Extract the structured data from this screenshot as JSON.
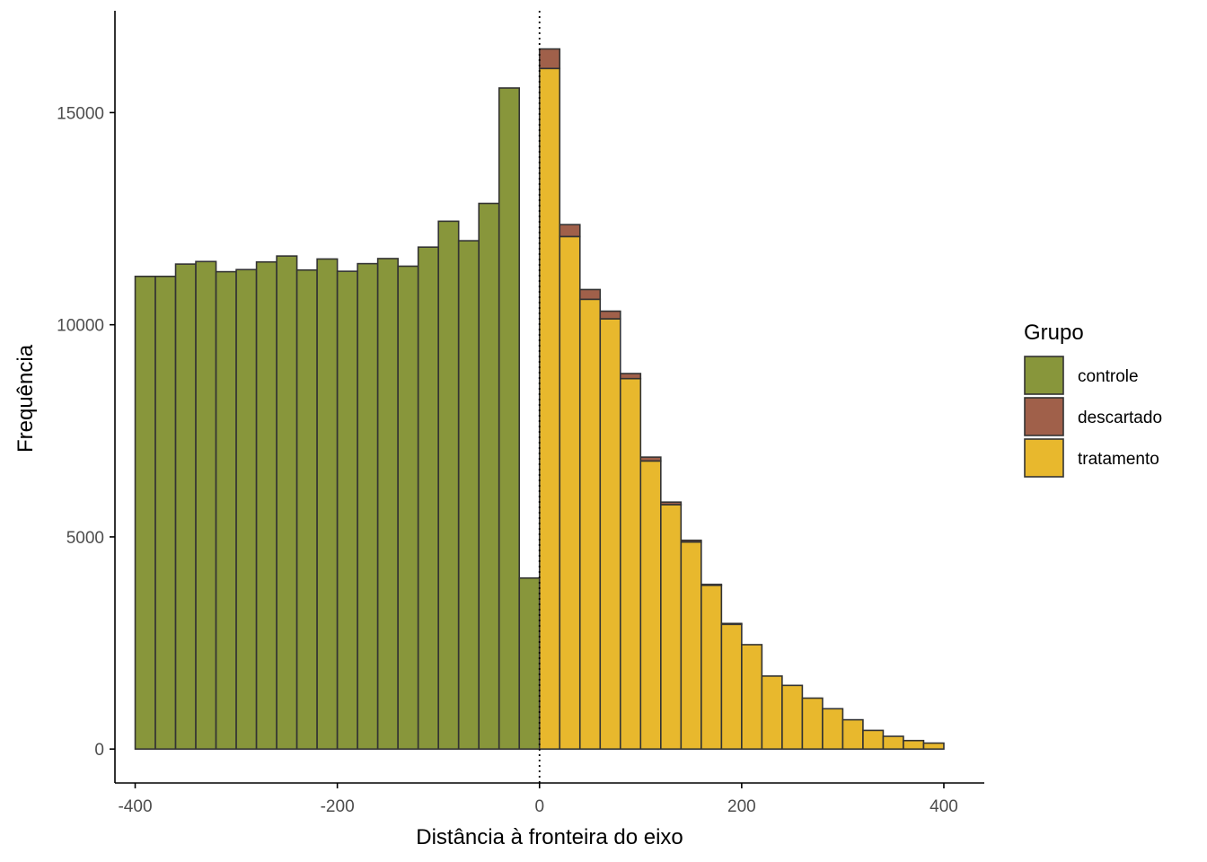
{
  "chart_data": {
    "type": "bar",
    "subtype": "stacked-histogram",
    "xlabel": "Distância à fronteira do eixo",
    "ylabel": "Frequência",
    "xlim": [
      -420,
      440
    ],
    "ylim": [
      -800,
      17400
    ],
    "x_ticks": [
      -400,
      -200,
      0,
      200,
      400
    ],
    "x_tick_labels": [
      "-400",
      "-200",
      "0",
      "200",
      "400"
    ],
    "y_ticks": [
      0,
      5000,
      10000,
      15000
    ],
    "y_tick_labels": [
      "0",
      "5000",
      "10000",
      "15000"
    ],
    "grid": false,
    "cutoff_line": {
      "x": 0,
      "style": "dotted"
    },
    "bin_width": 20,
    "bin_starts": [
      -400,
      -380,
      -360,
      -340,
      -320,
      -300,
      -280,
      -260,
      -240,
      -220,
      -200,
      -180,
      -160,
      -140,
      -120,
      -100,
      -80,
      -60,
      -40,
      -20,
      0,
      20,
      40,
      60,
      80,
      100,
      120,
      140,
      160,
      180,
      200,
      220,
      240,
      260,
      280,
      300,
      320,
      340,
      360,
      380
    ],
    "legend": {
      "title": "Grupo",
      "position": "right"
    },
    "series": [
      {
        "name": "controle",
        "color": "#88963B",
        "values": [
          11140,
          11140,
          11430,
          11490,
          11250,
          11300,
          11480,
          11620,
          11290,
          11550,
          11260,
          11440,
          11560,
          11380,
          11830,
          12440,
          11980,
          12860,
          15580,
          4030,
          0,
          0,
          0,
          0,
          0,
          0,
          0,
          0,
          0,
          0,
          0,
          0,
          0,
          0,
          0,
          0,
          0,
          0,
          0,
          0
        ]
      },
      {
        "name": "tratamento",
        "color": "#E8B82D",
        "values": [
          0,
          0,
          0,
          0,
          0,
          0,
          0,
          0,
          0,
          0,
          0,
          0,
          0,
          0,
          0,
          0,
          0,
          0,
          0,
          0,
          16040,
          12080,
          10600,
          10140,
          8730,
          6790,
          5760,
          4880,
          3860,
          2940,
          2460,
          1720,
          1500,
          1200,
          950,
          690,
          440,
          300,
          200,
          140
        ]
      },
      {
        "name": "descartado",
        "color": "#A0604A",
        "values": [
          0,
          0,
          0,
          0,
          0,
          0,
          0,
          0,
          0,
          0,
          0,
          0,
          0,
          0,
          0,
          0,
          0,
          0,
          0,
          0,
          460,
          280,
          230,
          180,
          120,
          90,
          60,
          40,
          20,
          20,
          0,
          0,
          0,
          0,
          0,
          0,
          0,
          0,
          0,
          0
        ]
      }
    ],
    "legend_order": [
      "controle",
      "descartado",
      "tratamento"
    ],
    "bar_outline_color": "#333333",
    "axis_color": "#000000"
  }
}
